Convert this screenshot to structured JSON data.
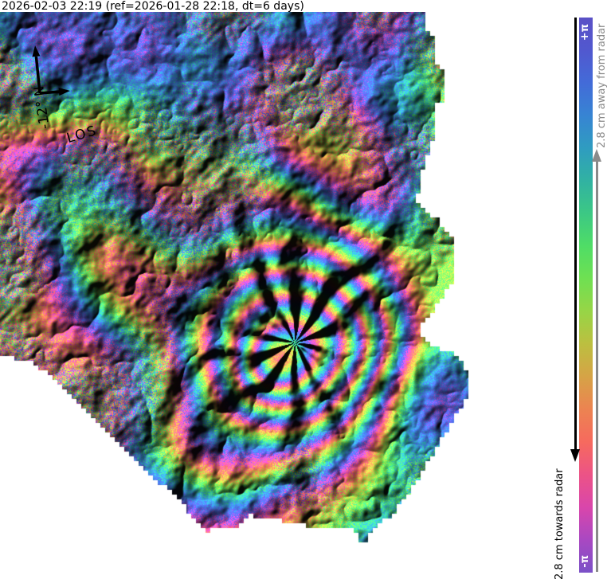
{
  "title": "2026-02-03 22:19 (ref=2026-01-28 22:18, dt=6 days)",
  "compass": {
    "north_label": "-12° N",
    "los_label": "LOS"
  },
  "colorbar": {
    "top_label": "+π",
    "bottom_label": "-π",
    "away_label": "2.8 cm away from radar",
    "towards_label": "2.8 cm towards radar",
    "away_color": "#8a8a8a",
    "towards_color": "#000000",
    "phase_range": [
      "-π",
      "+π"
    ],
    "cm_per_cycle_half": "2.8",
    "gradient_stops": [
      "#5b51c6",
      "#5158cf",
      "#436bd8",
      "#3784d3",
      "#2f9cc0",
      "#31b2a2",
      "#3cc884",
      "#4fdd66",
      "#6fe052",
      "#97d546",
      "#bcbf40",
      "#d6a346",
      "#ec8351",
      "#f66a5e",
      "#ec5386",
      "#d946ab",
      "#a948c2",
      "#7b51c7"
    ]
  },
  "map": {
    "type": "insar-wrapped-interferogram",
    "background": "#ffffff"
  }
}
